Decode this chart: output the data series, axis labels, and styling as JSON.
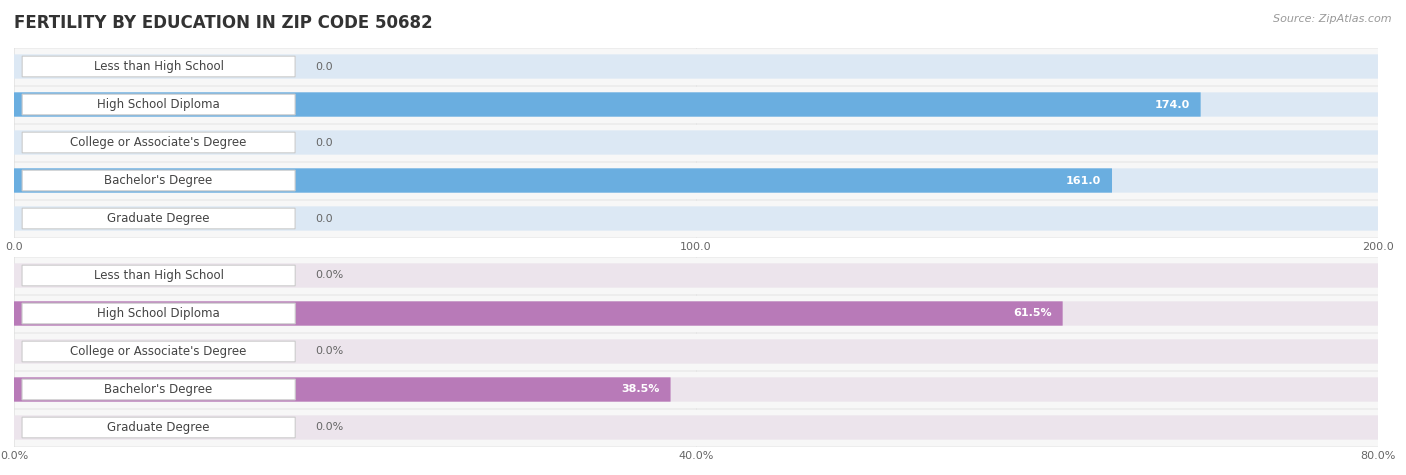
{
  "title": "FERTILITY BY EDUCATION IN ZIP CODE 50682",
  "source": "Source: ZipAtlas.com",
  "categories": [
    "Less than High School",
    "High School Diploma",
    "College or Associate's Degree",
    "Bachelor's Degree",
    "Graduate Degree"
  ],
  "count_values": [
    0.0,
    174.0,
    0.0,
    161.0,
    0.0
  ],
  "pct_values": [
    0.0,
    61.5,
    0.0,
    38.5,
    0.0
  ],
  "count_xlim": [
    0,
    200.0
  ],
  "count_xticks": [
    0.0,
    100.0,
    200.0
  ],
  "count_xtick_labels": [
    "0.0",
    "100.0",
    "200.0"
  ],
  "pct_xlim": [
    0,
    80.0
  ],
  "pct_xticks": [
    0.0,
    40.0,
    80.0
  ],
  "pct_xtick_labels": [
    "0.0%",
    "40.0%",
    "80.0%"
  ],
  "bar_color_blue_dark": "#6aaee0",
  "bar_color_blue_light": "#b8d4ee",
  "bar_color_purple_dark": "#b87ab8",
  "bar_color_purple_light": "#d8b4d8",
  "bar_bg_color_blue": "#dce8f4",
  "bar_bg_color_purple": "#ece4ec",
  "row_bg_color": "#f0f0f0",
  "label_box_color": "#FFFFFF",
  "label_border_color": "#cccccc",
  "label_text_color": "#444444",
  "value_text_color_inside": "#FFFFFF",
  "value_text_color_outside": "#666666",
  "title_color": "#333333",
  "source_color": "#999999",
  "grid_color": "#cccccc",
  "title_fontsize": 12,
  "label_fontsize": 8.5,
  "value_fontsize": 8,
  "tick_fontsize": 8,
  "source_fontsize": 8
}
